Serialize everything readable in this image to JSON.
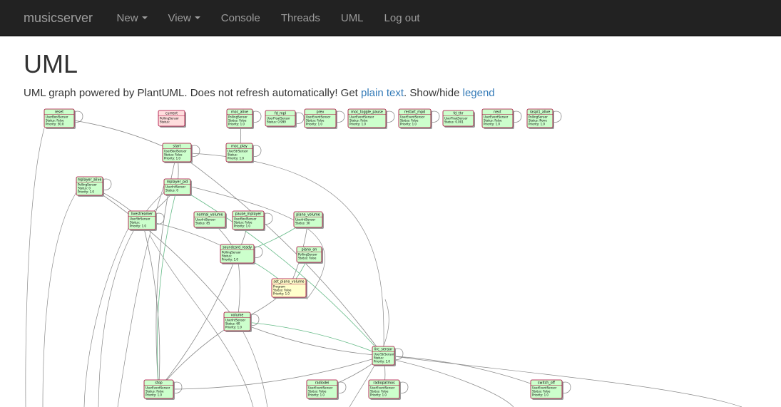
{
  "navbar": {
    "brand": "musicserver",
    "items": [
      {
        "label": "New",
        "dropdown": true
      },
      {
        "label": "View",
        "dropdown": true
      },
      {
        "label": "Console",
        "dropdown": false
      },
      {
        "label": "Threads",
        "dropdown": false
      },
      {
        "label": "UML",
        "dropdown": false
      },
      {
        "label": "Log out",
        "dropdown": false
      }
    ]
  },
  "page": {
    "title": "UML",
    "subtitle_prefix": "UML graph powered by PlantUML. Does not refresh automatically! Get ",
    "plain_text_link": "plain text",
    "subtitle_mid": ". Show/hide ",
    "legend_link": "legend"
  },
  "colors": {
    "navbar_bg": "#222222",
    "link": "#337ab7",
    "node_green": "#ccffcc",
    "node_pink": "#ffdddd",
    "node_yellow": "#ffffcc",
    "edge_gray": "#8a8a8a",
    "edge_green": "#66bb88"
  },
  "uml": {
    "nodes": [
      {
        "id": "reset",
        "title": "reset",
        "lines": [
          "UserBoolSensor",
          "Status: False",
          "Priority: 50.0"
        ],
        "color": "green"
      },
      {
        "id": "current",
        "title": "current",
        "lines": [
          "PollingSensor",
          "Status:"
        ],
        "color": "pink"
      },
      {
        "id": "moc_alive",
        "title": "moc_alive",
        "lines": [
          "PollingSensor",
          "Status: False",
          "Priority: 1.0"
        ],
        "color": "green"
      },
      {
        "id": "fd_mpl",
        "title": "fd_mpl",
        "lines": [
          "UserFloatSensor",
          "Status: 0.999"
        ],
        "color": "green"
      },
      {
        "id": "prev",
        "title": "prev",
        "lines": [
          "UserEventSensor",
          "Status: False",
          "Priority: 1.0"
        ],
        "color": "green"
      },
      {
        "id": "moc_toggle_pause",
        "title": "moc_toggle_pause",
        "lines": [
          "UserEventSensor",
          "Status: False",
          "Priority: 1.0"
        ],
        "color": "green"
      },
      {
        "id": "restart_mpd",
        "title": "restart_mpd",
        "lines": [
          "UserEventSensor",
          "Status: False",
          "Priority: 1.0"
        ],
        "color": "green"
      },
      {
        "id": "fd_thr",
        "title": "fd_thr",
        "lines": [
          "UserFloatSensor",
          "Status: 0.001"
        ],
        "color": "green"
      },
      {
        "id": "next",
        "title": "next",
        "lines": [
          "UserEventSensor",
          "Status: False",
          "Priority: 1.0"
        ],
        "color": "green"
      },
      {
        "id": "raspi1_alive",
        "title": "raspi1_alive",
        "lines": [
          "PollingSensor",
          "Status: None",
          "Priority: 1.0"
        ],
        "color": "green"
      },
      {
        "id": "start",
        "title": "start",
        "lines": [
          "UserBoolSensor",
          "Status: False",
          "Priority: 1.0"
        ],
        "color": "green"
      },
      {
        "id": "moc_play",
        "title": "moc_play",
        "lines": [
          "UserStrSensor",
          "Status:",
          "Priority: 1.0"
        ],
        "color": "green"
      },
      {
        "id": "mplayer_alive",
        "title": "mplayer_alive",
        "lines": [
          "PollingSensor",
          "Status: 0",
          "Priority: 1.0"
        ],
        "color": "green"
      },
      {
        "id": "mplayer_pid",
        "title": "mplayer_pid",
        "lines": [
          "UserIntSensor",
          "Status: 0"
        ],
        "color": "green"
      },
      {
        "id": "livestreamer",
        "title": "livestreamer",
        "lines": [
          "UserStrSensor",
          "Status:",
          "Priority: 1.0"
        ],
        "color": "green"
      },
      {
        "id": "normal_volume",
        "title": "normal_volume",
        "lines": [
          "UserIntSensor",
          "Status: 85"
        ],
        "color": "green"
      },
      {
        "id": "pause_mplayer",
        "title": "pause_mplayer",
        "lines": [
          "UserBoolSensor",
          "Status: False",
          "Priority: 1.0"
        ],
        "color": "green"
      },
      {
        "id": "piano_volume",
        "title": "piano_volume",
        "lines": [
          "UserIntSensor",
          "Status: 30"
        ],
        "color": "green"
      },
      {
        "id": "soundcard_ready",
        "title": "soundcard_ready",
        "lines": [
          "PollingSensor",
          "Status:",
          "Priority: 1.0"
        ],
        "color": "green"
      },
      {
        "id": "piano_on",
        "title": "piano_on",
        "lines": [
          "PollingSensor",
          "Status: False"
        ],
        "color": "green"
      },
      {
        "id": "set_piano_volume",
        "title": "set_piano_volume",
        "lines": [
          "Program",
          "Status: False",
          "Priority: 1.0"
        ],
        "color": "yellow"
      },
      {
        "id": "volume",
        "title": "volume",
        "lines": [
          "UserIntSensor",
          "Status: 60",
          "Priority: 1.0"
        ],
        "color": "green"
      },
      {
        "id": "lirc_sensor",
        "title": "lirc_sensor",
        "lines": [
          "UserStrSensor",
          "Status:",
          "Priority: 1.0"
        ],
        "color": "green"
      },
      {
        "id": "stop",
        "title": "stop",
        "lines": [
          "UserEventSensor",
          "Status: False",
          "Priority: 1.0"
        ],
        "color": "green"
      },
      {
        "id": "radiodei",
        "title": "radiodei",
        "lines": [
          "UserEventSensor",
          "Status: False",
          "Priority: 1.0"
        ],
        "color": "green"
      },
      {
        "id": "radiopatmos",
        "title": "radiopatmos",
        "lines": [
          "UserEventSensor",
          "Status: False",
          "Priority: 1.0"
        ],
        "color": "green"
      },
      {
        "id": "switch_off",
        "title": "switch_off",
        "lines": [
          "UserEventSensor",
          "Status: False",
          "Priority: 1.0"
        ],
        "color": "green"
      }
    ]
  }
}
